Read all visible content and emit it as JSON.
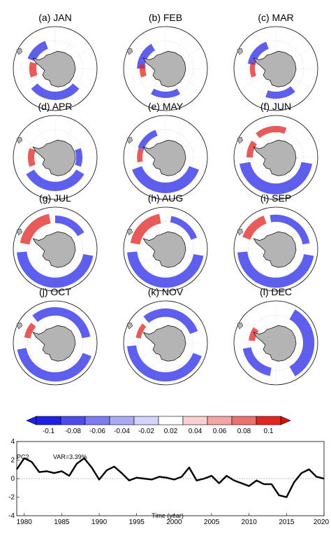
{
  "colorbar": {
    "tick_labels": [
      "-0.1",
      "-0.08",
      "-0.06",
      "-0.04",
      "-0.02",
      "0.02",
      "0.04",
      "0.06",
      "0.08",
      "0.1"
    ],
    "colors": [
      "#1f1fe6",
      "#4b4bef",
      "#7b7bf5",
      "#a9a9f8",
      "#d4d4fb",
      "#ffffff",
      "#fbd0d0",
      "#f6a3a3",
      "#ef7070",
      "#e62424",
      "#d61010"
    ]
  },
  "map_panels": [
    {
      "title": "(a)  JAN"
    },
    {
      "title": "(b)  FEB"
    },
    {
      "title": "(c)  MAR"
    },
    {
      "title": "(d)  APR"
    },
    {
      "title": "(e)  MAY"
    },
    {
      "title": "(f)  JUN"
    },
    {
      "title": "(g)  JUL"
    },
    {
      "title": "(h)  AUG"
    },
    {
      "title": "(i)  SEP"
    },
    {
      "title": "(j)  OCT"
    },
    {
      "title": "(k)  NOV"
    },
    {
      "title": "(l)  DEC"
    }
  ],
  "map_fill_colors": {
    "land": "#b4b4b4",
    "positive": "#e02424",
    "negative": "#2a2ae8"
  },
  "chart_data": {
    "type": "line",
    "series": [
      {
        "name": "PC2",
        "x": [
          1979,
          1980,
          1981,
          1982,
          1983,
          1984,
          1985,
          1986,
          1987,
          1988,
          1989,
          1990,
          1991,
          1992,
          1993,
          1994,
          1995,
          1996,
          1997,
          1998,
          1999,
          2000,
          2001,
          2002,
          2003,
          2004,
          2005,
          2006,
          2007,
          2008,
          2009,
          2010,
          2011,
          2012,
          2013,
          2014,
          2015,
          2016,
          2017,
          2018,
          2019,
          2020
        ],
        "y": [
          1.0,
          2.2,
          1.8,
          0.7,
          0.8,
          0.6,
          0.8,
          0.3,
          1.6,
          2.2,
          1.2,
          -0.1,
          0.9,
          1.3,
          0.6,
          -0.2,
          0.1,
          0.0,
          -0.1,
          0.2,
          0.1,
          -0.1,
          0.2,
          1.2,
          -0.2,
          0.0,
          0.3,
          -0.5,
          0.3,
          -0.2,
          -0.5,
          -0.8,
          -0.2,
          -0.6,
          -0.6,
          -1.8,
          -2.0,
          -0.4,
          0.6,
          1.0,
          0.2,
          0.0
        ]
      }
    ],
    "annotations": [
      "PC2",
      "VAR=3.39%"
    ],
    "xlabel": "Time (year)",
    "ylabel": "",
    "xlim": [
      1979,
      2020
    ],
    "ylim": [
      -4,
      4
    ],
    "xticks": [
      "1980",
      "1985",
      "1990",
      "1995",
      "2000",
      "2005",
      "2010",
      "2015",
      "2020"
    ],
    "yticks": [
      "-4",
      "-2",
      "0",
      "2",
      "4"
    ],
    "zero_line": "dotted"
  }
}
